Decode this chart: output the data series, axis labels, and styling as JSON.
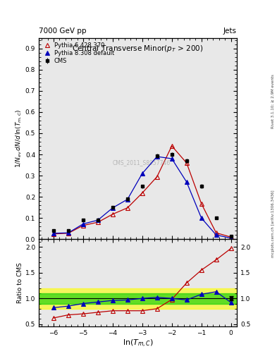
{
  "top_left_text": "7000 GeV pp",
  "top_right_text": "Jets",
  "right_label1": "Rivet 3.1.10; ≥ 2.9M events",
  "right_label2": "mcplots.cern.ch [arXiv:1306.3436]",
  "title": "Central Transverse Minor(p_{#it{T}}  > 200)",
  "watermark": "CMS_2011_S8957746",
  "xlabel": "ln(T_{m,C})",
  "ylabel": "1/N_{ev} dN/d ln(T_{m,C})",
  "ylabel_ratio": "Ratio to CMS",
  "xlim": [
    -6.5,
    0.2
  ],
  "ylim_main": [
    0.0,
    0.95
  ],
  "ylim_ratio": [
    0.45,
    2.15
  ],
  "cms_x": [
    -6.0,
    -5.5,
    -5.0,
    -4.5,
    -4.0,
    -3.5,
    -3.0,
    -2.5,
    -2.0,
    -1.5,
    -1.0,
    -0.5,
    0.0
  ],
  "cms_y": [
    0.04,
    0.04,
    0.09,
    0.09,
    0.15,
    0.19,
    0.25,
    0.395,
    0.4,
    0.37,
    0.25,
    0.1,
    0.015
  ],
  "cms_yerr": [
    0.004,
    0.004,
    0.005,
    0.005,
    0.006,
    0.007,
    0.008,
    0.01,
    0.01,
    0.01,
    0.01,
    0.006,
    0.003
  ],
  "py6_x": [
    -6.0,
    -5.5,
    -5.0,
    -4.5,
    -4.0,
    -3.5,
    -3.0,
    -2.5,
    -2.0,
    -1.5,
    -1.0,
    -0.5,
    0.0
  ],
  "py6_y": [
    0.025,
    0.028,
    0.065,
    0.08,
    0.118,
    0.148,
    0.218,
    0.295,
    0.44,
    0.36,
    0.168,
    0.03,
    0.01
  ],
  "py8_x": [
    -6.0,
    -5.5,
    -5.0,
    -4.5,
    -4.0,
    -3.5,
    -3.0,
    -2.5,
    -2.0,
    -1.5,
    -1.0,
    -0.5,
    0.0
  ],
  "py8_y": [
    0.028,
    0.03,
    0.072,
    0.09,
    0.148,
    0.188,
    0.31,
    0.39,
    0.38,
    0.27,
    0.1,
    0.02,
    0.005
  ],
  "py6_ratio": [
    0.62,
    0.68,
    0.7,
    0.73,
    0.76,
    0.76,
    0.76,
    0.8,
    0.98,
    1.3,
    1.55,
    1.75,
    1.97
  ],
  "py8_ratio": [
    0.82,
    0.85,
    0.9,
    0.93,
    0.96,
    0.97,
    1.0,
    1.02,
    1.0,
    0.97,
    1.08,
    1.13,
    0.92
  ],
  "cms_ratio_x": [
    0.0
  ],
  "cms_ratio_y": [
    1.0
  ],
  "cms_ratio_yerr": [
    0.04
  ],
  "cms_color": "black",
  "py6_color": "#bb0000",
  "py8_color": "#0000bb",
  "band_yellow": "#ffff00",
  "band_green": "#00cc00",
  "band_yellow_alpha": 0.6,
  "band_green_alpha": 0.6,
  "yellow_band_lo": 0.8,
  "yellow_band_hi": 1.2,
  "green_band_lo": 0.9,
  "green_band_hi": 1.1,
  "bg_color": "#e8e8e8",
  "yticks_main": [
    0.0,
    0.1,
    0.2,
    0.3,
    0.4,
    0.5,
    0.6,
    0.7,
    0.8,
    0.9
  ],
  "yticks_ratio": [
    0.5,
    1.0,
    1.5,
    2.0
  ],
  "xticks": [
    -6,
    -5,
    -4,
    -3,
    -2,
    -1,
    0
  ]
}
